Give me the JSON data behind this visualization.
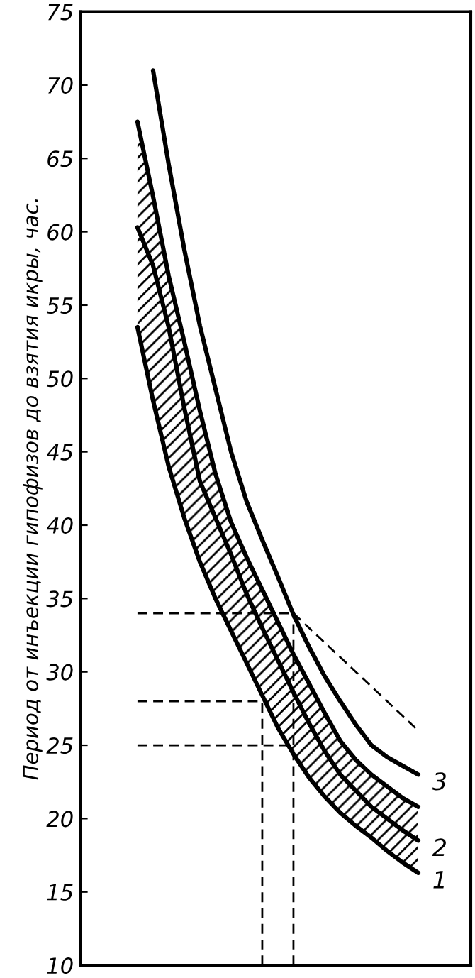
{
  "chart_data": {
    "type": "line",
    "ylabel": "Период от инъекции гипофизов до взятия икры, час.",
    "categories": [
      null,
      null,
      null,
      null,
      null,
      null,
      null,
      null,
      null,
      null,
      null,
      null,
      null,
      null,
      null,
      null,
      null,
      null,
      null
    ],
    "series": [
      {
        "name": "3",
        "color": "#000000",
        "values": [
          null,
          71,
          64.6,
          58.8,
          53.6,
          49.3,
          45,
          41.6,
          39,
          36.5,
          33.9,
          31.7,
          29.7,
          28,
          26.4,
          25,
          24.2,
          23.6,
          23.0
        ]
      },
      {
        "color": "#000000",
        "values": [
          67.5,
          62.4,
          57,
          52.5,
          47.8,
          43.5,
          40.2,
          37.8,
          35.6,
          33.4,
          31.2,
          29.2,
          27.2,
          25.3,
          24,
          23,
          22.2,
          21.4,
          20.8
        ]
      },
      {
        "name": "2",
        "color": "#000000",
        "values": [
          60.3,
          57.7,
          53.5,
          48,
          43,
          40.5,
          38,
          35.3,
          33,
          30.8,
          28.6,
          26.5,
          24.6,
          23,
          21.9,
          20.8,
          20,
          19.2,
          18.5
        ],
        "lower": [
          53.5,
          48.5,
          44,
          40.5,
          37.5,
          35,
          32.8,
          30.6,
          28.4,
          26.2,
          24.4,
          22.8,
          21.5,
          20.4,
          19.5,
          18.7,
          17.8,
          17,
          16.3
        ],
        "upper": [
          67.5,
          62.4,
          57,
          52.5,
          47.8,
          43.5,
          40.2,
          37.8,
          35.6,
          33.4,
          31.2,
          29.2,
          27.2,
          25.3,
          24,
          23,
          22.2,
          21.4,
          20.8
        ]
      },
      {
        "name": "1",
        "color": "#000000",
        "values": [
          53.5,
          48.5,
          44,
          40.5,
          37.5,
          35,
          32.8,
          30.6,
          28.4,
          26.2,
          24.4,
          22.8,
          21.5,
          20.4,
          19.5,
          18.7,
          17.8,
          17,
          16.3
        ]
      },
      {
        "color": "#000000",
        "line_style": "dashed",
        "values": [
          34,
          34,
          34,
          34,
          34,
          34,
          34,
          34,
          34,
          34,
          34,
          null,
          null,
          null,
          null,
          null,
          null,
          null,
          null
        ],
        "errors": [
          null,
          null,
          null,
          null,
          null,
          null,
          null,
          null,
          null,
          null,
          [
            10,
            34
          ],
          null,
          null,
          null,
          null,
          null,
          null,
          null,
          null
        ]
      },
      {
        "color": "#000000",
        "line_style": "dashed",
        "values": [
          28,
          28,
          28,
          28,
          28,
          28,
          28,
          28,
          28,
          null,
          null,
          null,
          null,
          null,
          null,
          null,
          null,
          null,
          null
        ],
        "errors": [
          null,
          null,
          null,
          null,
          null,
          null,
          null,
          null,
          [
            10,
            28
          ],
          null,
          null,
          null,
          null,
          null,
          null,
          null,
          null,
          null,
          null
        ]
      },
      {
        "color": "#000000",
        "line_style": "dashed",
        "values": [
          25,
          25,
          25,
          25,
          25,
          25,
          25,
          25,
          25,
          25,
          25,
          null,
          null,
          null,
          null,
          null,
          null,
          null,
          null
        ]
      },
      {
        "color": "#000000",
        "line_style": "dashed",
        "values": [
          null,
          null,
          null,
          null,
          null,
          null,
          null,
          null,
          null,
          null,
          34,
          33,
          32,
          31,
          30,
          29,
          28,
          27,
          26
        ]
      }
    ],
    "ylim": [
      10,
      75
    ],
    "yticks": [
      10,
      15,
      20,
      25,
      30,
      35,
      40,
      45,
      50,
      55,
      60,
      65,
      70,
      75
    ],
    "grid": false,
    "legend": false,
    "marker": "none",
    "line_style": "solid"
  }
}
